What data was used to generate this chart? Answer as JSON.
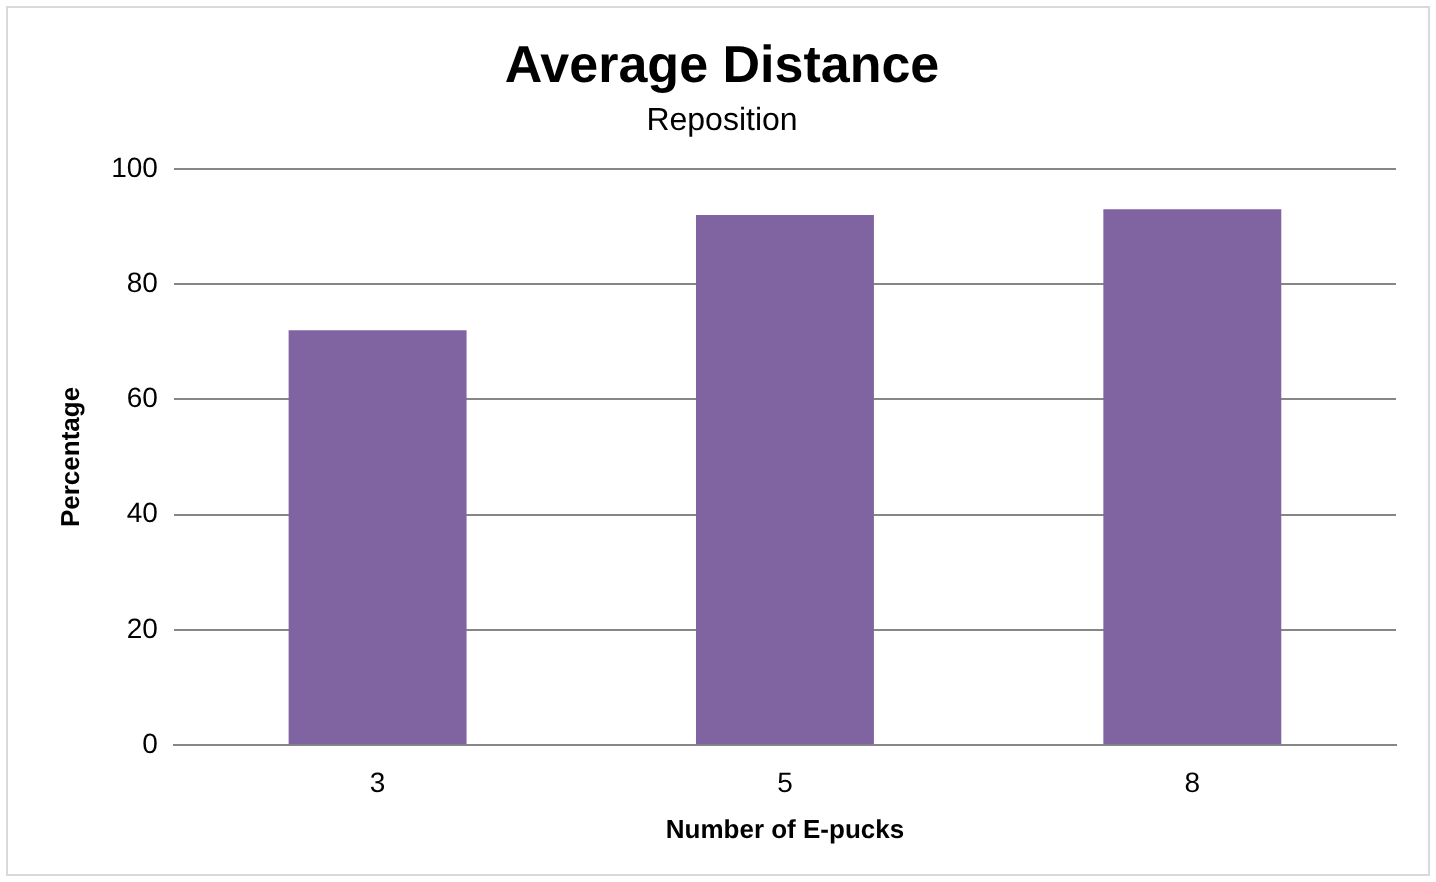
{
  "chart_data": {
    "type": "bar",
    "title": "Average Distance",
    "subtitle": "Reposition",
    "xlabel": "Number of E-pucks",
    "ylabel": "Percentage",
    "categories": [
      "3",
      "5",
      "8"
    ],
    "values": [
      72,
      92,
      93
    ],
    "color": "#8064a2",
    "ylim": [
      0,
      100
    ],
    "yticks": [
      0,
      20,
      40,
      60,
      80,
      100
    ],
    "grid": "y",
    "legend": false
  }
}
